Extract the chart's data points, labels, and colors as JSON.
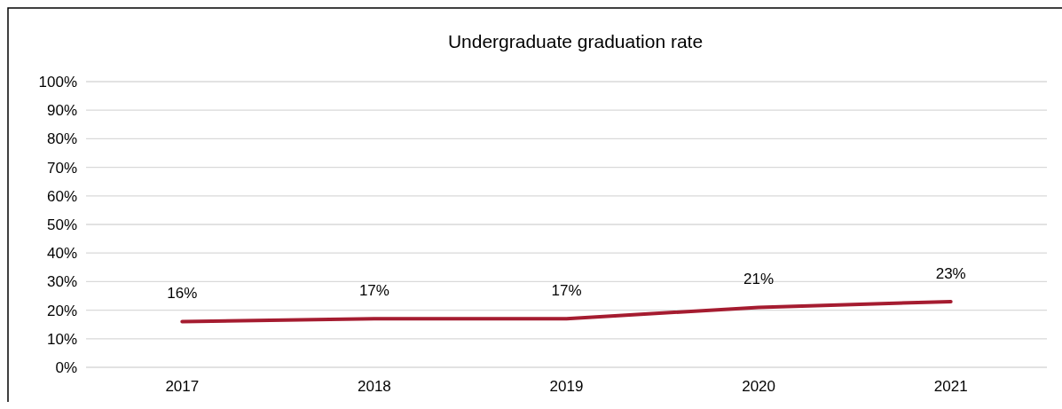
{
  "chart_data": {
    "type": "line",
    "title": "Undergraduate graduation rate",
    "categories": [
      "2017",
      "2018",
      "2019",
      "2020",
      "2021"
    ],
    "series": [
      {
        "color": "#a51c30",
        "values": [
          16,
          17,
          17,
          21,
          23
        ],
        "value_labels": [
          "16%",
          "17%",
          "17%",
          "21%",
          "23%"
        ]
      }
    ],
    "ylim": [
      0,
      100
    ],
    "yticks": [
      {
        "value": 0,
        "label": "0%"
      },
      {
        "value": 10,
        "label": "10%"
      },
      {
        "value": 20,
        "label": "20%"
      },
      {
        "value": 30,
        "label": "30%"
      },
      {
        "value": 40,
        "label": "40%"
      },
      {
        "value": 50,
        "label": "50%"
      },
      {
        "value": 60,
        "label": "60%"
      },
      {
        "value": 70,
        "label": "70%"
      },
      {
        "value": 80,
        "label": "80%"
      },
      {
        "value": 90,
        "label": "90%"
      },
      {
        "value": 100,
        "label": "100%"
      }
    ],
    "grid": "y",
    "marker": "none",
    "line_style": "solid"
  }
}
